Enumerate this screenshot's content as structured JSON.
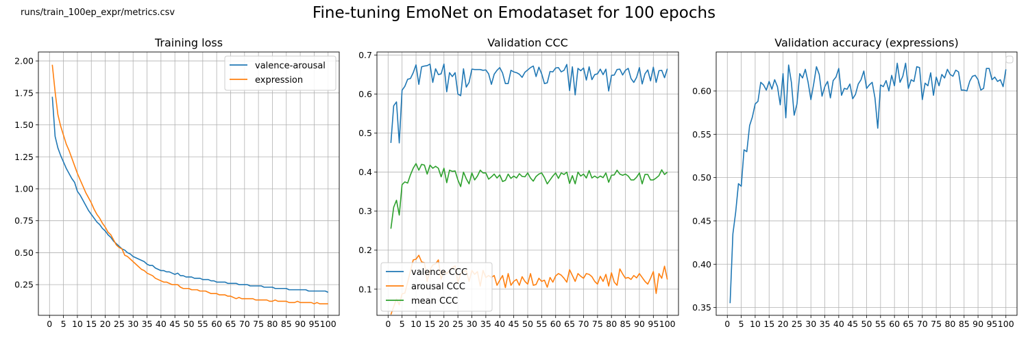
{
  "figure": {
    "caption": "runs/train_100ep_expr/metrics.csv",
    "suptitle": "Fine-tuning EmoNet on Emodataset for 100 epochs"
  },
  "chart_data": [
    {
      "type": "line",
      "title": "Training loss",
      "xlabel": "",
      "ylabel": "",
      "xlim": [
        -4,
        104
      ],
      "ylim": [
        0.01,
        2.07
      ],
      "x_ticks": [
        0,
        5,
        10,
        15,
        20,
        25,
        30,
        35,
        40,
        45,
        50,
        55,
        60,
        65,
        70,
        75,
        80,
        85,
        90,
        95,
        100
      ],
      "y_ticks": [
        0.25,
        0.5,
        0.75,
        1.0,
        1.25,
        1.5,
        1.75,
        2.0
      ],
      "y_tick_labels": [
        "0.25",
        "0.50",
        "0.75",
        "1.00",
        "1.25",
        "1.50",
        "1.75",
        "2.00"
      ],
      "grid": true,
      "legend": "top-right",
      "x": [
        1,
        2,
        3,
        4,
        5,
        6,
        7,
        8,
        9,
        10,
        11,
        12,
        13,
        14,
        15,
        16,
        17,
        18,
        19,
        20,
        21,
        22,
        23,
        24,
        25,
        26,
        27,
        28,
        29,
        30,
        31,
        32,
        33,
        34,
        35,
        36,
        37,
        38,
        39,
        40,
        41,
        42,
        43,
        44,
        45,
        46,
        47,
        48,
        49,
        50,
        51,
        52,
        53,
        54,
        55,
        56,
        57,
        58,
        59,
        60,
        61,
        62,
        63,
        64,
        65,
        66,
        67,
        68,
        69,
        70,
        71,
        72,
        73,
        74,
        75,
        76,
        77,
        78,
        79,
        80,
        81,
        82,
        83,
        84,
        85,
        86,
        87,
        88,
        89,
        90,
        91,
        92,
        93,
        94,
        95,
        96,
        97,
        98,
        99,
        100
      ],
      "series": [
        {
          "name": "valence-arousal",
          "color": "#1f77b4",
          "values": [
            1.72,
            1.41,
            1.32,
            1.26,
            1.21,
            1.16,
            1.12,
            1.08,
            1.05,
            0.98,
            0.95,
            0.91,
            0.87,
            0.83,
            0.8,
            0.77,
            0.74,
            0.72,
            0.69,
            0.67,
            0.64,
            0.62,
            0.59,
            0.57,
            0.55,
            0.53,
            0.52,
            0.5,
            0.49,
            0.47,
            0.46,
            0.45,
            0.44,
            0.43,
            0.41,
            0.4,
            0.4,
            0.38,
            0.37,
            0.36,
            0.36,
            0.35,
            0.35,
            0.34,
            0.33,
            0.34,
            0.32,
            0.32,
            0.31,
            0.31,
            0.31,
            0.3,
            0.3,
            0.3,
            0.29,
            0.29,
            0.29,
            0.28,
            0.28,
            0.27,
            0.27,
            0.27,
            0.27,
            0.26,
            0.26,
            0.26,
            0.26,
            0.25,
            0.25,
            0.25,
            0.25,
            0.24,
            0.24,
            0.24,
            0.24,
            0.24,
            0.23,
            0.23,
            0.23,
            0.23,
            0.22,
            0.22,
            0.22,
            0.22,
            0.22,
            0.21,
            0.21,
            0.21,
            0.21,
            0.21,
            0.21,
            0.21,
            0.2,
            0.2,
            0.2,
            0.2,
            0.2,
            0.2,
            0.2,
            0.19
          ]
        },
        {
          "name": "expression",
          "color": "#ff7f0e",
          "values": [
            1.97,
            1.76,
            1.58,
            1.49,
            1.42,
            1.35,
            1.3,
            1.24,
            1.18,
            1.12,
            1.07,
            1.02,
            0.97,
            0.93,
            0.89,
            0.84,
            0.8,
            0.77,
            0.73,
            0.7,
            0.66,
            0.64,
            0.6,
            0.56,
            0.54,
            0.53,
            0.48,
            0.47,
            0.45,
            0.43,
            0.41,
            0.39,
            0.37,
            0.36,
            0.34,
            0.33,
            0.32,
            0.3,
            0.29,
            0.28,
            0.27,
            0.27,
            0.26,
            0.25,
            0.25,
            0.25,
            0.23,
            0.22,
            0.22,
            0.22,
            0.21,
            0.21,
            0.21,
            0.2,
            0.2,
            0.2,
            0.19,
            0.18,
            0.18,
            0.18,
            0.17,
            0.17,
            0.17,
            0.16,
            0.16,
            0.15,
            0.14,
            0.15,
            0.14,
            0.14,
            0.14,
            0.14,
            0.14,
            0.13,
            0.13,
            0.13,
            0.13,
            0.13,
            0.12,
            0.12,
            0.13,
            0.12,
            0.12,
            0.12,
            0.12,
            0.11,
            0.11,
            0.11,
            0.12,
            0.11,
            0.11,
            0.11,
            0.11,
            0.11,
            0.1,
            0.11,
            0.1,
            0.1,
            0.1,
            0.1
          ]
        }
      ]
    },
    {
      "type": "line",
      "title": "Validation CCC",
      "xlabel": "",
      "ylabel": "",
      "xlim": [
        -4,
        104
      ],
      "ylim": [
        0.033,
        0.708
      ],
      "x_ticks": [
        0,
        5,
        10,
        15,
        20,
        25,
        30,
        35,
        40,
        45,
        50,
        55,
        60,
        65,
        70,
        75,
        80,
        85,
        90,
        95,
        100
      ],
      "y_ticks": [
        0.1,
        0.2,
        0.3,
        0.4,
        0.5,
        0.6,
        0.7
      ],
      "y_tick_labels": [
        "0.1",
        "0.2",
        "0.3",
        "0.4",
        "0.5",
        "0.6",
        "0.7"
      ],
      "grid": true,
      "legend": "bottom-left",
      "x": [
        1,
        2,
        3,
        4,
        5,
        6,
        7,
        8,
        9,
        10,
        11,
        12,
        13,
        14,
        15,
        16,
        17,
        18,
        19,
        20,
        21,
        22,
        23,
        24,
        25,
        26,
        27,
        28,
        29,
        30,
        31,
        32,
        33,
        34,
        35,
        36,
        37,
        38,
        39,
        40,
        41,
        42,
        43,
        44,
        45,
        46,
        47,
        48,
        49,
        50,
        51,
        52,
        53,
        54,
        55,
        56,
        57,
        58,
        59,
        60,
        61,
        62,
        63,
        64,
        65,
        66,
        67,
        68,
        69,
        70,
        71,
        72,
        73,
        74,
        75,
        76,
        77,
        78,
        79,
        80,
        81,
        82,
        83,
        84,
        85,
        86,
        87,
        88,
        89,
        90,
        91,
        92,
        93,
        94,
        95,
        96,
        97,
        98,
        99,
        100
      ],
      "series": [
        {
          "name": "valence CCC",
          "color": "#1f77b4",
          "values": [
            0.475,
            0.57,
            0.58,
            0.475,
            0.61,
            0.62,
            0.638,
            0.64,
            0.655,
            0.675,
            0.625,
            0.67,
            0.672,
            0.673,
            0.677,
            0.63,
            0.665,
            0.65,
            0.652,
            0.677,
            0.606,
            0.655,
            0.645,
            0.655,
            0.6,
            0.596,
            0.665,
            0.618,
            0.63,
            0.664,
            0.663,
            0.663,
            0.663,
            0.661,
            0.662,
            0.652,
            0.625,
            0.651,
            0.661,
            0.668,
            0.654,
            0.627,
            0.627,
            0.661,
            0.657,
            0.655,
            0.651,
            0.643,
            0.656,
            0.662,
            0.668,
            0.672,
            0.645,
            0.669,
            0.652,
            0.627,
            0.629,
            0.658,
            0.657,
            0.667,
            0.668,
            0.657,
            0.661,
            0.676,
            0.609,
            0.67,
            0.598,
            0.666,
            0.66,
            0.667,
            0.636,
            0.67,
            0.637,
            0.65,
            0.652,
            0.664,
            0.65,
            0.664,
            0.608,
            0.648,
            0.649,
            0.663,
            0.664,
            0.649,
            0.661,
            0.666,
            0.64,
            0.63,
            0.643,
            0.668,
            0.626,
            0.652,
            0.662,
            0.634,
            0.669,
            0.63,
            0.66,
            0.661,
            0.642,
            0.665
          ]
        },
        {
          "name": "arousal CCC",
          "color": "#ff7f0e",
          "values": [
            0.035,
            0.055,
            0.075,
            0.06,
            0.088,
            0.09,
            0.118,
            0.147,
            0.175,
            0.177,
            0.187,
            0.17,
            0.168,
            0.12,
            0.15,
            0.162,
            0.165,
            0.175,
            0.125,
            0.148,
            0.14,
            0.148,
            0.155,
            0.16,
            0.117,
            0.14,
            0.145,
            0.148,
            0.12,
            0.148,
            0.138,
            0.145,
            0.108,
            0.148,
            0.13,
            0.135,
            0.13,
            0.135,
            0.11,
            0.123,
            0.135,
            0.104,
            0.14,
            0.11,
            0.12,
            0.125,
            0.11,
            0.132,
            0.12,
            0.113,
            0.14,
            0.11,
            0.112,
            0.128,
            0.12,
            0.123,
            0.105,
            0.13,
            0.118,
            0.134,
            0.14,
            0.136,
            0.128,
            0.118,
            0.15,
            0.135,
            0.12,
            0.14,
            0.133,
            0.128,
            0.14,
            0.138,
            0.132,
            0.12,
            0.113,
            0.133,
            0.12,
            0.138,
            0.108,
            0.142,
            0.118,
            0.11,
            0.152,
            0.139,
            0.128,
            0.13,
            0.125,
            0.135,
            0.129,
            0.14,
            0.13,
            0.12,
            0.113,
            0.128,
            0.145,
            0.089,
            0.14,
            0.128,
            0.159,
            0.125
          ]
        },
        {
          "name": "mean CCC",
          "color": "#2ca02c",
          "values": [
            0.255,
            0.31,
            0.328,
            0.29,
            0.368,
            0.375,
            0.372,
            0.393,
            0.41,
            0.422,
            0.405,
            0.42,
            0.418,
            0.395,
            0.418,
            0.41,
            0.415,
            0.41,
            0.388,
            0.41,
            0.373,
            0.405,
            0.402,
            0.403,
            0.38,
            0.363,
            0.4,
            0.383,
            0.37,
            0.398,
            0.38,
            0.39,
            0.405,
            0.398,
            0.398,
            0.382,
            0.388,
            0.395,
            0.385,
            0.393,
            0.376,
            0.379,
            0.395,
            0.384,
            0.39,
            0.385,
            0.396,
            0.389,
            0.388,
            0.398,
            0.385,
            0.377,
            0.389,
            0.395,
            0.398,
            0.386,
            0.37,
            0.38,
            0.39,
            0.398,
            0.384,
            0.398,
            0.394,
            0.4,
            0.371,
            0.391,
            0.37,
            0.4,
            0.39,
            0.395,
            0.385,
            0.404,
            0.385,
            0.39,
            0.385,
            0.39,
            0.386,
            0.398,
            0.374,
            0.392,
            0.393,
            0.405,
            0.395,
            0.392,
            0.395,
            0.39,
            0.38,
            0.38,
            0.387,
            0.398,
            0.37,
            0.394,
            0.394,
            0.38,
            0.38,
            0.385,
            0.391,
            0.406,
            0.394,
            0.4
          ]
        }
      ]
    },
    {
      "type": "line",
      "title": "Validation accuracy (expressions)",
      "xlabel": "",
      "ylabel": "",
      "xlim": [
        -4,
        104
      ],
      "ylim": [
        0.341,
        0.645
      ],
      "x_ticks": [
        0,
        5,
        10,
        15,
        20,
        25,
        30,
        35,
        40,
        45,
        50,
        55,
        60,
        65,
        70,
        75,
        80,
        85,
        90,
        95,
        100
      ],
      "y_ticks": [
        0.35,
        0.4,
        0.45,
        0.5,
        0.55,
        0.6
      ],
      "y_tick_labels": [
        "0.35",
        "0.40",
        "0.45",
        "0.50",
        "0.55",
        "0.60"
      ],
      "grid": true,
      "legend": "top-right",
      "x": [
        1,
        2,
        3,
        4,
        5,
        6,
        7,
        8,
        9,
        10,
        11,
        12,
        13,
        14,
        15,
        16,
        17,
        18,
        19,
        20,
        21,
        22,
        23,
        24,
        25,
        26,
        27,
        28,
        29,
        30,
        31,
        32,
        33,
        34,
        35,
        36,
        37,
        38,
        39,
        40,
        41,
        42,
        43,
        44,
        45,
        46,
        47,
        48,
        49,
        50,
        51,
        52,
        53,
        54,
        55,
        56,
        57,
        58,
        59,
        60,
        61,
        62,
        63,
        64,
        65,
        66,
        67,
        68,
        69,
        70,
        71,
        72,
        73,
        74,
        75,
        76,
        77,
        78,
        79,
        80,
        81,
        82,
        83,
        84,
        85,
        86,
        87,
        88,
        89,
        90,
        91,
        92,
        93,
        94,
        95,
        96,
        97,
        98,
        99,
        100
      ],
      "series": [
        {
          "name": "",
          "color": "#1f77b4",
          "values": [
            0.355,
            0.435,
            0.46,
            0.493,
            0.49,
            0.532,
            0.53,
            0.56,
            0.57,
            0.585,
            0.588,
            0.61,
            0.607,
            0.601,
            0.611,
            0.602,
            0.613,
            0.605,
            0.584,
            0.62,
            0.569,
            0.63,
            0.61,
            0.572,
            0.585,
            0.62,
            0.615,
            0.625,
            0.61,
            0.59,
            0.608,
            0.628,
            0.619,
            0.594,
            0.605,
            0.611,
            0.592,
            0.612,
            0.616,
            0.626,
            0.595,
            0.603,
            0.602,
            0.608,
            0.591,
            0.596,
            0.608,
            0.613,
            0.623,
            0.603,
            0.607,
            0.61,
            0.592,
            0.557,
            0.607,
            0.605,
            0.612,
            0.6,
            0.618,
            0.606,
            0.632,
            0.61,
            0.617,
            0.632,
            0.603,
            0.613,
            0.611,
            0.628,
            0.627,
            0.59,
            0.609,
            0.606,
            0.621,
            0.595,
            0.616,
            0.606,
            0.619,
            0.615,
            0.625,
            0.619,
            0.617,
            0.624,
            0.622,
            0.601,
            0.601,
            0.6,
            0.611,
            0.617,
            0.618,
            0.613,
            0.601,
            0.603,
            0.626,
            0.626,
            0.613,
            0.616,
            0.611,
            0.613,
            0.605,
            0.625
          ]
        }
      ]
    }
  ]
}
